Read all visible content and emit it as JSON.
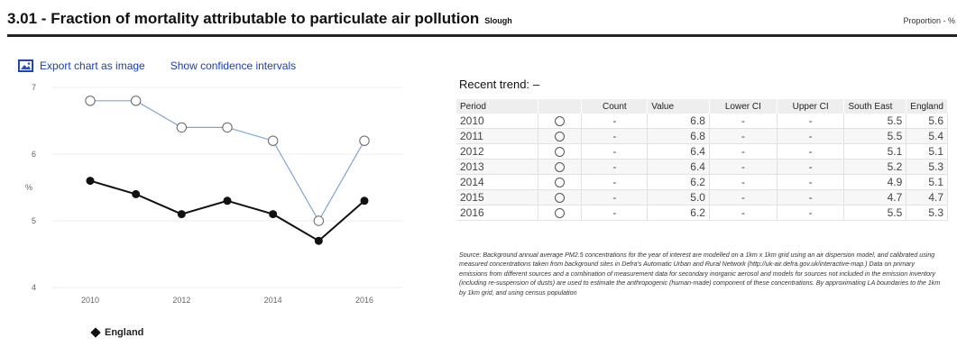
{
  "header": {
    "title": "3.01 - Fraction of mortality attributable to particulate air pollution",
    "area": "Slough",
    "unit": "Proportion - %"
  },
  "toolbar": {
    "export_label": "Export chart as image",
    "export_icon": "image-icon",
    "ci_label": "Show confidence intervals"
  },
  "chart_data": {
    "type": "line",
    "title": "",
    "xlabel": "",
    "ylabel": "%",
    "x": [
      2010,
      2011,
      2012,
      2013,
      2014,
      2015,
      2016
    ],
    "x_tick_labels": [
      "2010",
      "2012",
      "2014",
      "2016"
    ],
    "y_tick_labels": [
      "4",
      "5",
      "6",
      "7"
    ],
    "ylim": [
      4,
      7
    ],
    "grid": true,
    "legend_placement": "bottom-left",
    "series": [
      {
        "values": [
          6.8,
          6.8,
          6.4,
          6.4,
          6.2,
          5.0,
          6.2
        ],
        "color": "#7fa6d6",
        "marker": "open-circle"
      },
      {
        "name": "England",
        "values": [
          5.6,
          5.4,
          5.1,
          5.3,
          5.1,
          4.7,
          5.3
        ],
        "color": "#111111",
        "marker": "filled-circle"
      }
    ]
  },
  "trend": {
    "label": "Recent trend:",
    "value": "–"
  },
  "table": {
    "headers": [
      "Period",
      "",
      "Count",
      "Value",
      "Lower CI",
      "Upper CI",
      "South East",
      "England"
    ],
    "rows": [
      {
        "period": "2010",
        "count": "-",
        "value": "6.8",
        "lci": "-",
        "uci": "-",
        "se": "5.5",
        "eng": "5.6"
      },
      {
        "period": "2011",
        "count": "-",
        "value": "6.8",
        "lci": "-",
        "uci": "-",
        "se": "5.5",
        "eng": "5.4"
      },
      {
        "period": "2012",
        "count": "-",
        "value": "6.4",
        "lci": "-",
        "uci": "-",
        "se": "5.1",
        "eng": "5.1"
      },
      {
        "period": "2013",
        "count": "-",
        "value": "6.4",
        "lci": "-",
        "uci": "-",
        "se": "5.2",
        "eng": "5.3"
      },
      {
        "period": "2014",
        "count": "-",
        "value": "6.2",
        "lci": "-",
        "uci": "-",
        "se": "4.9",
        "eng": "5.1"
      },
      {
        "period": "2015",
        "count": "-",
        "value": "5.0",
        "lci": "-",
        "uci": "-",
        "se": "4.7",
        "eng": "4.7"
      },
      {
        "period": "2016",
        "count": "-",
        "value": "6.2",
        "lci": "-",
        "uci": "-",
        "se": "5.5",
        "eng": "5.3"
      }
    ]
  },
  "source": "Source: Background annual average PM2.5 concentrations for the year of interest are modelled on a 1km x 1km grid using an air dispersion model, and calibrated using measured concentrations taken from background sites in Defra's Automatic Urban and Rural Network (http://uk-air.defra.gov.uk/interactive-map.) Data on primary emissions from different sources and a combination of measurement data for secondary inorganic aerosol and models for sources not included in the emission inventory (including re-suspension of dusts) are used to estimate the anthropogenic (human-made) component of these concentrations. By approximating LA boundaries to the 1km by 1km grid, and using census population"
}
